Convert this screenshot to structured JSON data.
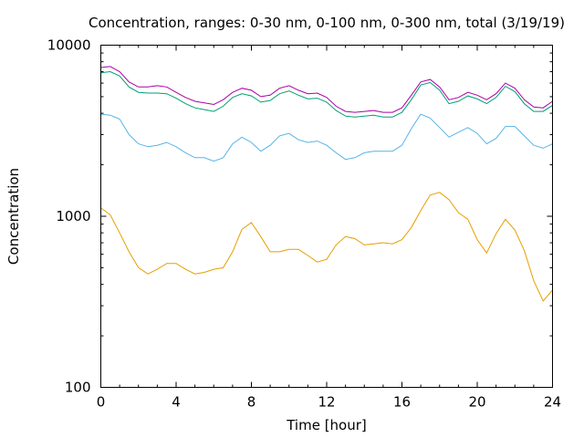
{
  "chart_data": {
    "type": "line",
    "title": "Concentration, ranges: 0-30 nm, 0-100 nm, 0-300 nm, total (3/19/19)",
    "xlabel": "Time [hour]",
    "ylabel": "Concentration",
    "xlim": [
      0,
      24
    ],
    "ylim": [
      100,
      10000
    ],
    "yscale": "log",
    "grid": false,
    "legend": "none",
    "x_ticks": [
      "0",
      "4",
      "8",
      "12",
      "16",
      "20",
      "24"
    ],
    "y_ticks": [
      "100",
      "1000",
      "10000"
    ],
    "x": [
      0,
      0.5,
      1,
      1.5,
      2,
      2.5,
      3,
      3.5,
      4,
      4.5,
      5,
      5.5,
      6,
      6.5,
      7,
      7.5,
      8,
      8.5,
      9,
      9.5,
      10,
      10.5,
      11,
      11.5,
      12,
      12.5,
      13,
      13.5,
      14,
      14.5,
      15,
      15.5,
      16,
      16.5,
      17,
      17.5,
      18,
      18.5,
      19,
      19.5,
      20,
      20.5,
      21,
      21.5,
      22,
      22.5,
      23,
      23.5,
      24
    ],
    "series": [
      {
        "color": "#aa00aa",
        "values": [
          7400,
          7500,
          7000,
          6100,
          5700,
          5700,
          5800,
          5700,
          5300,
          4950,
          4700,
          4600,
          4500,
          4800,
          5300,
          5600,
          5450,
          5000,
          5100,
          5600,
          5800,
          5450,
          5200,
          5250,
          4950,
          4400,
          4100,
          4050,
          4100,
          4150,
          4050,
          4050,
          4300,
          5100,
          6100,
          6300,
          5700,
          4800,
          4950,
          5300,
          5100,
          4800,
          5200,
          6000,
          5600,
          4800,
          4350,
          4300,
          4700
        ]
      },
      {
        "color": "#009e73",
        "values": [
          6900,
          7000,
          6600,
          5700,
          5300,
          5250,
          5250,
          5200,
          4900,
          4550,
          4300,
          4200,
          4100,
          4400,
          4950,
          5200,
          5050,
          4650,
          4750,
          5200,
          5400,
          5100,
          4850,
          4900,
          4650,
          4150,
          3850,
          3800,
          3850,
          3900,
          3800,
          3800,
          4050,
          4800,
          5850,
          6050,
          5450,
          4550,
          4700,
          5050,
          4850,
          4550,
          4950,
          5750,
          5350,
          4550,
          4100,
          4100,
          4450
        ]
      },
      {
        "color": "#56b4e9",
        "values": [
          3950,
          3900,
          3700,
          3000,
          2650,
          2550,
          2600,
          2700,
          2550,
          2350,
          2200,
          2200,
          2100,
          2200,
          2650,
          2900,
          2700,
          2400,
          2600,
          2950,
          3050,
          2800,
          2700,
          2750,
          2600,
          2350,
          2150,
          2200,
          2350,
          2400,
          2400,
          2400,
          2600,
          3250,
          3950,
          3750,
          3300,
          2900,
          3100,
          3300,
          3050,
          2650,
          2850,
          3350,
          3350,
          2950,
          2600,
          2500,
          2650
        ]
      },
      {
        "color": "#e69f00",
        "values": [
          1120,
          1020,
          800,
          620,
          500,
          460,
          490,
          530,
          530,
          490,
          460,
          470,
          490,
          500,
          620,
          840,
          920,
          760,
          620,
          620,
          640,
          640,
          590,
          540,
          560,
          680,
          760,
          740,
          680,
          690,
          700,
          690,
          730,
          860,
          1080,
          1330,
          1380,
          1250,
          1050,
          960,
          730,
          610,
          790,
          960,
          830,
          630,
          420,
          320,
          370
        ]
      }
    ]
  }
}
